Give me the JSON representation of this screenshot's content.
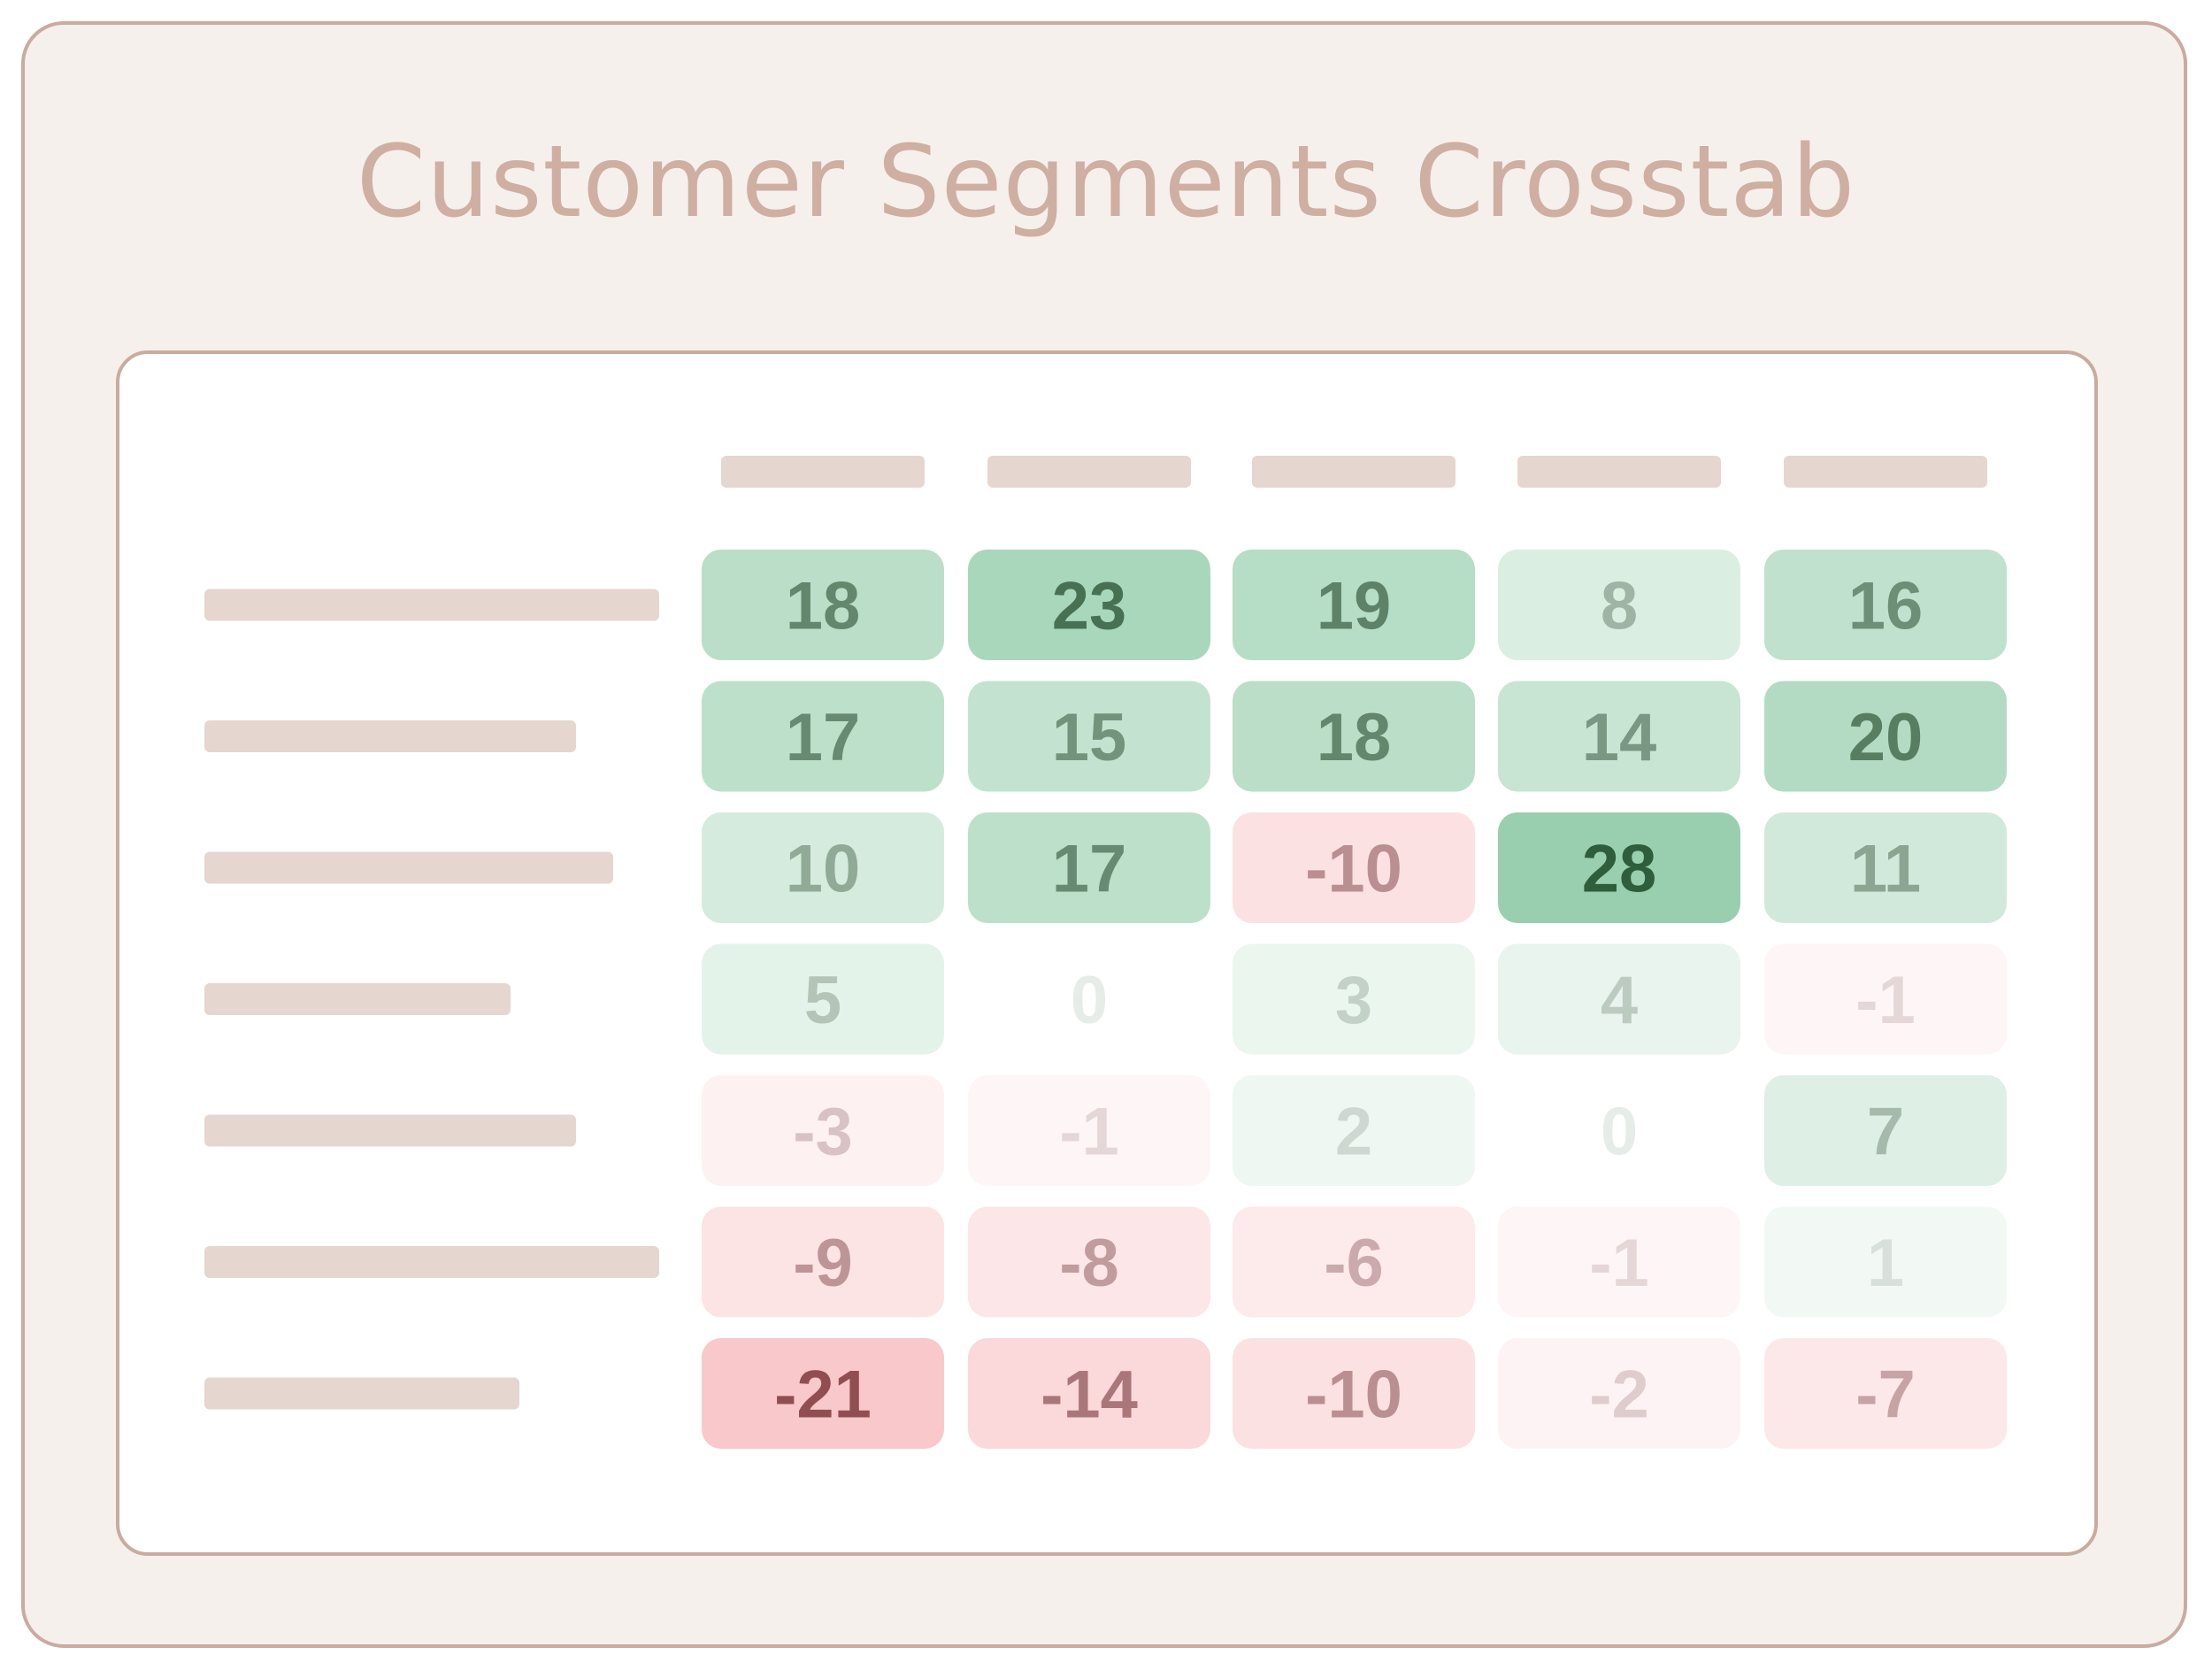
{
  "title": "Customer Segments Crosstab",
  "chart_data": {
    "type": "heatmap",
    "title": "Customer Segments Crosstab",
    "column_labels": [
      "",
      "",
      "",
      "",
      ""
    ],
    "row_labels": [
      "",
      "",
      "",
      "",
      "",
      "",
      ""
    ],
    "values": [
      [
        18,
        23,
        19,
        8,
        16
      ],
      [
        17,
        15,
        18,
        14,
        20
      ],
      [
        10,
        17,
        -10,
        28,
        11
      ],
      [
        5,
        0,
        3,
        4,
        -1
      ],
      [
        -3,
        -1,
        2,
        0,
        7
      ],
      [
        -9,
        -8,
        -6,
        -1,
        1
      ],
      [
        -21,
        -14,
        -10,
        -2,
        -7
      ]
    ],
    "value_range": [
      -21,
      28
    ],
    "colors": {
      "positive": "#57b07a",
      "negative": "#f28b8f",
      "positive_text": "#2f5e3c",
      "negative_text": "#7a2a2e",
      "label_placeholder": "#e5d6d0",
      "frame_border": "#c9ab9f",
      "title": "#cfafa2"
    }
  }
}
